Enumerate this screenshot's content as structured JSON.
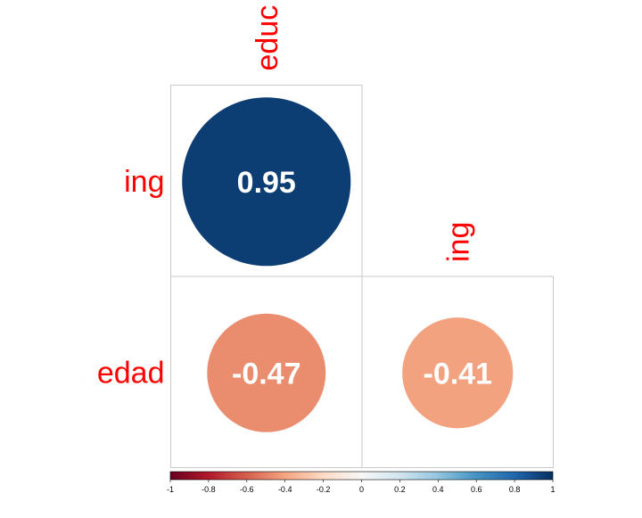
{
  "chart_data": {
    "type": "correlation-matrix",
    "method": "circle",
    "layout": "lower-triangle",
    "row_labels": [
      "ing",
      "edad"
    ],
    "col_labels": [
      "educ",
      "ing"
    ],
    "cells": [
      {
        "row": "ing",
        "col": "educ",
        "value": 0.95,
        "label": "0.95"
      },
      {
        "row": "edad",
        "col": "educ",
        "value": -0.47,
        "label": "-0.47"
      },
      {
        "row": "edad",
        "col": "ing",
        "value": -0.41,
        "label": "-0.41"
      }
    ],
    "colorbar": {
      "range": [
        -1,
        1
      ],
      "ticks": [
        "-1",
        "-0.8",
        "-0.6",
        "-0.4",
        "-0.2",
        "0",
        "0.2",
        "0.4",
        "0.6",
        "0.8",
        "1"
      ],
      "colors": [
        "#67001f",
        "#b2182b",
        "#d6604d",
        "#f4a582",
        "#fddbc7",
        "#f7f7f7",
        "#d1e5f0",
        "#92c5de",
        "#4393c3",
        "#2166ac",
        "#053061"
      ]
    },
    "label_color": "#ff0000",
    "value_label_color": "#ffffff",
    "grid_color": "#c8c8c8"
  }
}
